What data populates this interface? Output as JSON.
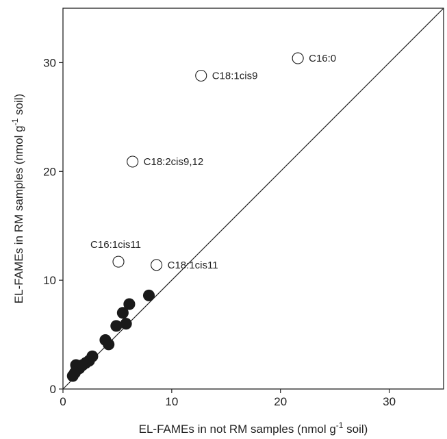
{
  "chart_data": {
    "type": "scatter",
    "title": "",
    "xlabel": {
      "main": "EL-FAMEs in not RM samples (nmol g",
      "sup": "-1",
      "end": " soil)"
    },
    "ylabel": {
      "main": "EL-FAMEs in RM samples (nmol g",
      "sup": "-1",
      "end": " soil)"
    },
    "xlim": [
      0,
      35
    ],
    "ylim": [
      0,
      35
    ],
    "xticks": [
      0,
      10,
      20,
      30
    ],
    "yticks": [
      0,
      10,
      20,
      30
    ],
    "grid": false,
    "legend": "none",
    "reference_line": {
      "from": [
        0,
        0
      ],
      "to": [
        35,
        35
      ],
      "meaning": "1:1 line"
    },
    "series": [
      {
        "marker": "open-circle",
        "points": [
          {
            "x": 21.6,
            "y": 30.4,
            "label": "C16:0"
          },
          {
            "x": 12.7,
            "y": 28.8,
            "label": "C18:1cis9"
          },
          {
            "x": 6.4,
            "y": 20.9,
            "label": "C18:2cis9,12"
          },
          {
            "x": 5.1,
            "y": 11.7,
            "label": "C16:1cis11"
          },
          {
            "x": 8.6,
            "y": 11.4,
            "label": "C18:1cis11"
          }
        ]
      },
      {
        "marker": "filled-circle",
        "points": [
          {
            "x": 7.9,
            "y": 8.6
          },
          {
            "x": 6.1,
            "y": 7.8
          },
          {
            "x": 5.5,
            "y": 7.0
          },
          {
            "x": 5.8,
            "y": 6.0
          },
          {
            "x": 4.9,
            "y": 5.8
          },
          {
            "x": 3.9,
            "y": 4.5
          },
          {
            "x": 4.2,
            "y": 4.1
          },
          {
            "x": 2.7,
            "y": 3.0
          },
          {
            "x": 2.4,
            "y": 2.6
          },
          {
            "x": 2.1,
            "y": 2.4
          },
          {
            "x": 1.8,
            "y": 2.2
          },
          {
            "x": 1.2,
            "y": 2.2
          },
          {
            "x": 1.5,
            "y": 1.9
          },
          {
            "x": 1.1,
            "y": 1.5
          },
          {
            "x": 0.9,
            "y": 1.2
          }
        ]
      }
    ]
  }
}
